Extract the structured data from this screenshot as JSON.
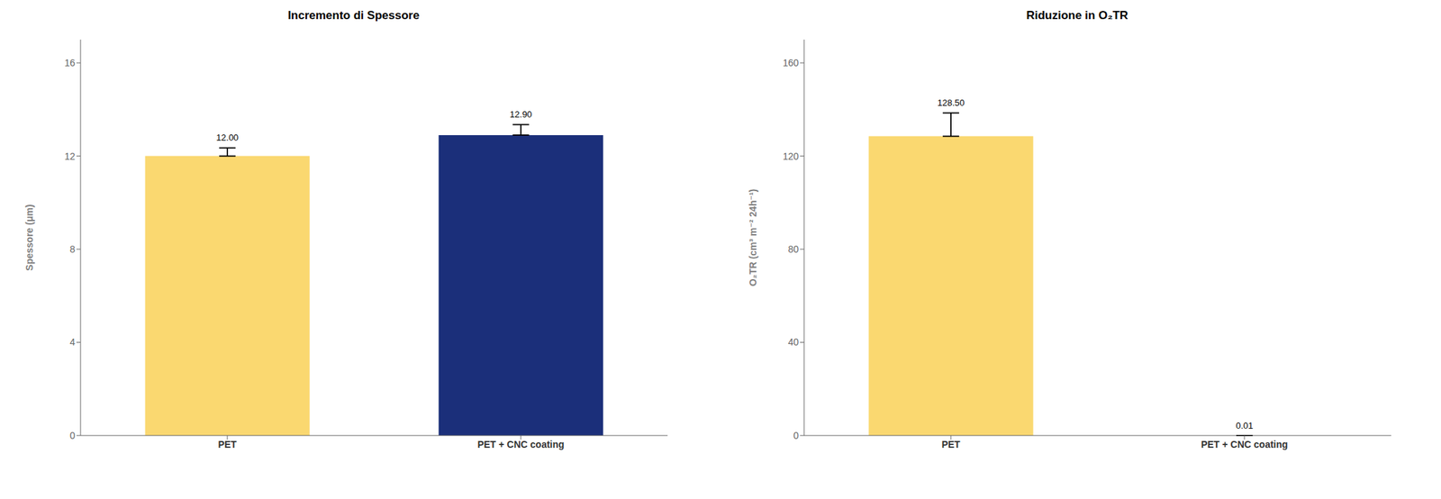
{
  "chart_data": [
    {
      "type": "bar",
      "title": "Incremento di Spessore",
      "categories": [
        "PET",
        "PET + CNC coating"
      ],
      "values": [
        12.0,
        12.9
      ],
      "errors": [
        0.35,
        0.45
      ],
      "colors": [
        "#FAD870",
        "#1B2F7A"
      ],
      "ylabel": "Spessore (μm)",
      "ylim": [
        0,
        17
      ],
      "yticks": [
        0,
        4,
        8,
        12,
        16
      ],
      "value_labels": [
        "12.00",
        "12.90"
      ],
      "data_labels": true,
      "grid": false
    },
    {
      "type": "bar",
      "title": "Riduzione in O₂TR",
      "categories": [
        "PET",
        "PET + CNC coating"
      ],
      "values": [
        128.5,
        0.01
      ],
      "errors": [
        10.0,
        0.0
      ],
      "colors": [
        "#FAD870",
        "#FAD870"
      ],
      "ylabel": "O₂TR  (cm³ m⁻² 24h⁻¹)",
      "ylim": [
        0,
        170
      ],
      "yticks": [
        0,
        40,
        80,
        120,
        160
      ],
      "value_labels": [
        "128.50",
        "0.01"
      ],
      "data_labels": true,
      "grid": false
    }
  ]
}
